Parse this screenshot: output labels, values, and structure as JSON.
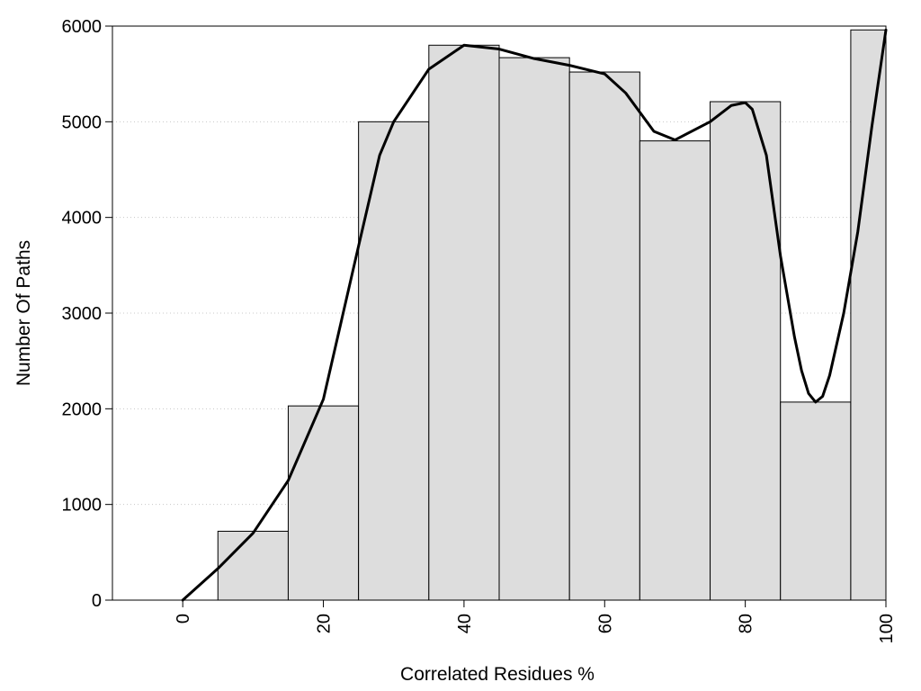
{
  "chart_data": {
    "type": "bar",
    "title": "",
    "xlabel": "Correlated Residues %",
    "ylabel": "Number Of Paths",
    "xlim": [
      -10,
      100
    ],
    "ylim": [
      0,
      6000
    ],
    "grid": "y-dotted",
    "bar_fill": "#dddddd",
    "bar_stroke": "#000000",
    "curve_color": "#000000",
    "xticks": [
      0,
      20,
      40,
      60,
      80,
      100
    ],
    "yticks": [
      0,
      1000,
      2000,
      3000,
      4000,
      5000,
      6000
    ],
    "bins": [
      {
        "x0": -5,
        "x1": 5,
        "value": 0
      },
      {
        "x0": 5,
        "x1": 15,
        "value": 720
      },
      {
        "x0": 15,
        "x1": 25,
        "value": 2030
      },
      {
        "x0": 25,
        "x1": 35,
        "value": 5000
      },
      {
        "x0": 35,
        "x1": 45,
        "value": 5800
      },
      {
        "x0": 45,
        "x1": 55,
        "value": 5670
      },
      {
        "x0": 55,
        "x1": 65,
        "value": 5520
      },
      {
        "x0": 65,
        "x1": 75,
        "value": 4800
      },
      {
        "x0": 75,
        "x1": 85,
        "value": 5210
      },
      {
        "x0": 85,
        "x1": 95,
        "value": 2070
      },
      {
        "x0": 95,
        "x1": 100,
        "value": 5960
      }
    ],
    "curve": {
      "x": [
        0,
        5,
        10,
        15,
        20,
        25,
        28,
        30,
        35,
        40,
        45,
        50,
        55,
        60,
        63,
        67,
        70,
        75,
        78,
        80,
        81,
        83,
        85,
        87,
        88,
        89,
        90,
        91,
        92,
        94,
        96,
        98,
        100
      ],
      "y": [
        0,
        330,
        700,
        1250,
        2100,
        3700,
        4650,
        5000,
        5550,
        5800,
        5760,
        5660,
        5590,
        5500,
        5300,
        4900,
        4810,
        5000,
        5170,
        5200,
        5130,
        4650,
        3600,
        2750,
        2400,
        2160,
        2070,
        2130,
        2350,
        3000,
        3850,
        4950,
        5960
      ]
    }
  }
}
